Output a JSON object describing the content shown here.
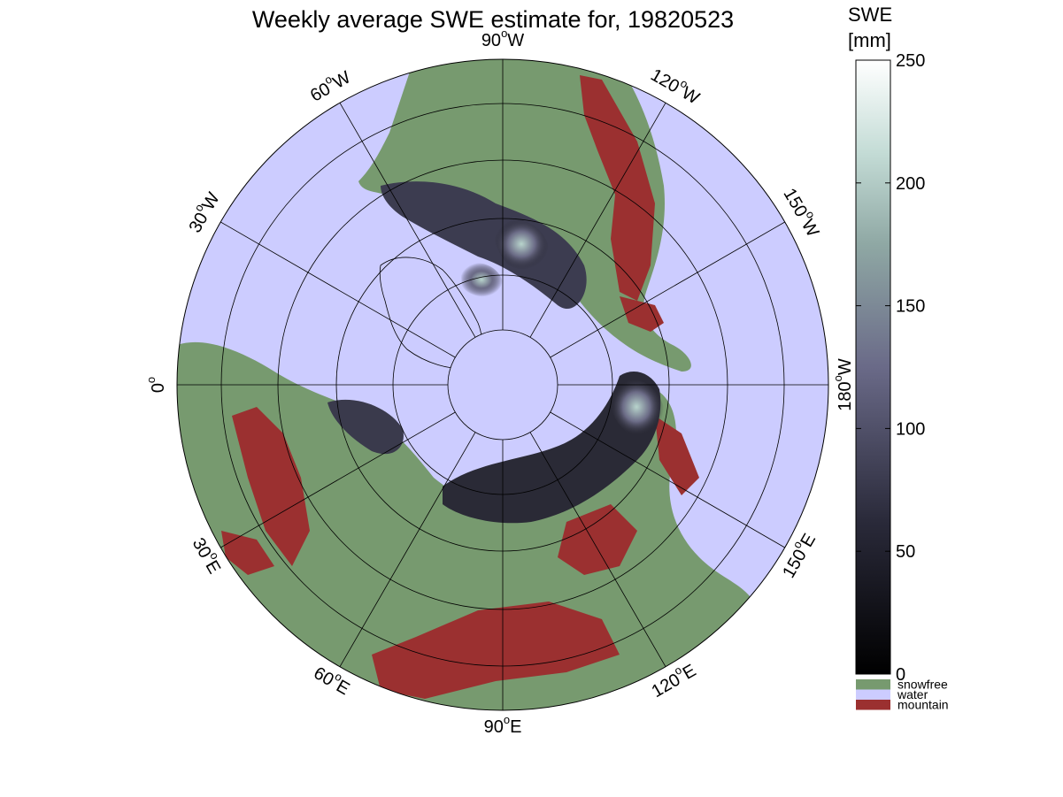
{
  "title": "Weekly average SWE estimate for, 19820523",
  "map": {
    "projection": "north polar stereographic",
    "longitude_labels": [
      {
        "deg": "90",
        "dir": "W"
      },
      {
        "deg": "60",
        "dir": "W"
      },
      {
        "deg": "30",
        "dir": "W"
      },
      {
        "deg": "0",
        "dir": ""
      },
      {
        "deg": "30",
        "dir": "E"
      },
      {
        "deg": "60",
        "dir": "E"
      },
      {
        "deg": "90",
        "dir": "E"
      },
      {
        "deg": "120",
        "dir": "E"
      },
      {
        "deg": "150",
        "dir": "E"
      },
      {
        "deg": "180",
        "dir": "W"
      },
      {
        "deg": "150",
        "dir": "W"
      },
      {
        "deg": "120",
        "dir": "W"
      }
    ],
    "degree_symbol": "o",
    "colors": {
      "snowfree": "#779a6f",
      "water": "#ccccff",
      "mountain": "#9b3030",
      "snow_low": "#111118",
      "snow_mid": "#5a5a78",
      "snow_high": "#a8c8c0",
      "snow_max": "#f6fbfa"
    }
  },
  "colorbar": {
    "title_line1": "SWE",
    "title_line2": "[mm]",
    "ticks": [
      "0",
      "50",
      "100",
      "150",
      "200",
      "250"
    ],
    "min": 0,
    "max": 250,
    "legend": [
      {
        "label": "snowfree",
        "color": "#779a6f"
      },
      {
        "label": "water",
        "color": "#ccccff"
      },
      {
        "label": "mountain",
        "color": "#9b3030"
      }
    ]
  }
}
